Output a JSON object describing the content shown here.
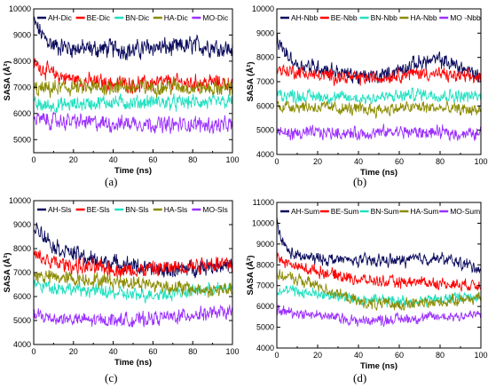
{
  "figure": {
    "captions": [
      "(a)",
      "(b)",
      "(c)",
      "(d)"
    ]
  },
  "chart_data": [
    {
      "type": "line",
      "panel": "a",
      "xlabel": "Time (ns)",
      "ylabel": "SASA (Å²)",
      "xlim": [
        0,
        100
      ],
      "ylim": [
        4500,
        10000
      ],
      "xticks": [
        0,
        20,
        40,
        60,
        80,
        100
      ],
      "yticks": [
        5000,
        6000,
        7000,
        8000,
        9000,
        10000
      ],
      "legend_position": "top",
      "series": [
        {
          "name": "AH-Dic",
          "color": "#0a0a5c",
          "x": [
            0,
            5,
            10,
            20,
            30,
            40,
            50,
            60,
            70,
            80,
            90,
            100
          ],
          "y": [
            9500,
            8900,
            8600,
            8500,
            8450,
            8500,
            8400,
            8550,
            8500,
            8600,
            8550,
            8450
          ],
          "noise": 270
        },
        {
          "name": "BE-Dic",
          "color": "#ff0000",
          "x": [
            0,
            10,
            20,
            30,
            40,
            50,
            60,
            70,
            80,
            90,
            100
          ],
          "y": [
            7900,
            7500,
            7300,
            7200,
            7150,
            7100,
            7150,
            7200,
            7150,
            7200,
            7150
          ],
          "noise": 230
        },
        {
          "name": "BN-Dic",
          "color": "#20e0c0",
          "x": [
            0,
            10,
            20,
            30,
            40,
            50,
            60,
            70,
            80,
            90,
            100
          ],
          "y": [
            6300,
            6300,
            6350,
            6400,
            6450,
            6400,
            6450,
            6400,
            6450,
            6400,
            6450
          ],
          "noise": 210
        },
        {
          "name": "HA-Dic",
          "color": "#8b8b00",
          "x": [
            0,
            10,
            20,
            30,
            40,
            50,
            60,
            70,
            80,
            90,
            100
          ],
          "y": [
            6900,
            6950,
            7000,
            6950,
            7050,
            7000,
            7000,
            7050,
            7000,
            6950,
            7000
          ],
          "noise": 240
        },
        {
          "name": "MO-Dic",
          "color": "#9b30ff",
          "x": [
            0,
            10,
            20,
            30,
            40,
            50,
            60,
            70,
            80,
            90,
            100
          ],
          "y": [
            5800,
            5700,
            5700,
            5650,
            5600,
            5650,
            5600,
            5550,
            5600,
            5550,
            5550
          ],
          "noise": 230
        }
      ]
    },
    {
      "type": "line",
      "panel": "b",
      "xlabel": "Time (ns)",
      "ylabel": "SASA (Å²)",
      "xlim": [
        0,
        100
      ],
      "ylim": [
        4000,
        10000
      ],
      "xticks": [
        0,
        20,
        40,
        60,
        80,
        100
      ],
      "yticks": [
        4000,
        5000,
        6000,
        7000,
        8000,
        9000,
        10000
      ],
      "legend_position": "top",
      "series": [
        {
          "name": "AH-Nbb",
          "color": "#0a0a5c",
          "x": [
            0,
            5,
            10,
            20,
            30,
            40,
            50,
            60,
            70,
            80,
            90,
            100
          ],
          "y": [
            8700,
            8100,
            7700,
            7600,
            7400,
            7200,
            7200,
            7500,
            7800,
            7900,
            7600,
            7200
          ],
          "noise": 240
        },
        {
          "name": "BE-Nbb",
          "color": "#ff0000",
          "x": [
            0,
            10,
            20,
            30,
            40,
            50,
            60,
            70,
            80,
            90,
            100
          ],
          "y": [
            7500,
            7400,
            7250,
            7200,
            7150,
            7150,
            7300,
            7350,
            7300,
            7200,
            7150
          ],
          "noise": 210
        },
        {
          "name": "BN-Nbb",
          "color": "#20e0c0",
          "x": [
            0,
            10,
            20,
            30,
            40,
            50,
            60,
            70,
            80,
            90,
            100
          ],
          "y": [
            6500,
            6400,
            6400,
            6350,
            6300,
            6350,
            6400,
            6500,
            6450,
            6400,
            6400
          ],
          "noise": 200
        },
        {
          "name": "HA-Nbb",
          "color": "#8b8b00",
          "x": [
            0,
            10,
            20,
            30,
            40,
            50,
            60,
            70,
            80,
            90,
            100
          ],
          "y": [
            6000,
            6000,
            5950,
            5900,
            5850,
            5850,
            5900,
            5950,
            5900,
            5850,
            5850
          ],
          "noise": 200
        },
        {
          "name": "MO -Nbb",
          "color": "#9b30ff",
          "x": [
            0,
            10,
            20,
            30,
            40,
            50,
            60,
            70,
            80,
            90,
            100
          ],
          "y": [
            4900,
            4850,
            4900,
            4900,
            4850,
            4900,
            4950,
            4900,
            4900,
            4850,
            4850
          ],
          "noise": 200
        }
      ]
    },
    {
      "type": "line",
      "panel": "c",
      "xlabel": "Time (ns)",
      "ylabel": "SASA (Å²)",
      "xlim": [
        0,
        100
      ],
      "ylim": [
        4000,
        10000
      ],
      "xticks": [
        0,
        20,
        40,
        60,
        80,
        100
      ],
      "yticks": [
        4000,
        5000,
        6000,
        7000,
        8000,
        9000,
        10000
      ],
      "legend_position": "top",
      "series": [
        {
          "name": "AH-Sls",
          "color": "#0a0a5c",
          "x": [
            0,
            5,
            10,
            20,
            30,
            40,
            50,
            60,
            70,
            80,
            90,
            100
          ],
          "y": [
            9000,
            8600,
            8100,
            7800,
            7500,
            7400,
            7300,
            7100,
            7100,
            7200,
            7300,
            7300
          ],
          "noise": 250
        },
        {
          "name": "BE-Sls",
          "color": "#ff0000",
          "x": [
            0,
            10,
            20,
            30,
            40,
            50,
            60,
            70,
            80,
            90,
            100
          ],
          "y": [
            7700,
            7400,
            7300,
            7200,
            7150,
            7100,
            7150,
            7200,
            7300,
            7400,
            7350
          ],
          "noise": 260
        },
        {
          "name": "BN-Sls",
          "color": "#20e0c0",
          "x": [
            0,
            10,
            20,
            30,
            40,
            50,
            60,
            70,
            80,
            90,
            100
          ],
          "y": [
            6500,
            6400,
            6300,
            6250,
            6150,
            6050,
            6100,
            6150,
            6250,
            6300,
            6350
          ],
          "noise": 210
        },
        {
          "name": "HA-Sls",
          "color": "#8b8b00",
          "x": [
            0,
            10,
            20,
            30,
            40,
            50,
            60,
            70,
            80,
            90,
            100
          ],
          "y": [
            6900,
            6800,
            6750,
            6700,
            6650,
            6600,
            6500,
            6400,
            6300,
            6250,
            6300
          ],
          "noise": 230
        },
        {
          "name": "MO-Sls",
          "color": "#9b30ff",
          "x": [
            0,
            10,
            20,
            30,
            40,
            50,
            60,
            70,
            80,
            90,
            100
          ],
          "y": [
            5200,
            5100,
            5050,
            5000,
            5050,
            5000,
            5100,
            5150,
            5250,
            5300,
            5350
          ],
          "noise": 220
        }
      ]
    },
    {
      "type": "line",
      "panel": "d",
      "xlabel": "Time (ns)",
      "ylabel": "SASA (Å²)",
      "xlim": [
        0,
        100
      ],
      "ylim": [
        4000,
        11000
      ],
      "xticks": [
        0,
        20,
        40,
        60,
        80,
        100
      ],
      "yticks": [
        4000,
        5000,
        6000,
        7000,
        8000,
        9000,
        10000,
        11000
      ],
      "legend_position": "top",
      "series": [
        {
          "name": "AH-Sum",
          "color": "#0a0a5c",
          "x": [
            0,
            2,
            5,
            10,
            20,
            30,
            40,
            50,
            60,
            70,
            80,
            90,
            100
          ],
          "y": [
            10100,
            9300,
            8700,
            8400,
            8300,
            8250,
            8200,
            8200,
            8200,
            8300,
            8300,
            8100,
            7800
          ],
          "noise": 220
        },
        {
          "name": "BE-Sum",
          "color": "#ff0000",
          "x": [
            0,
            10,
            20,
            30,
            40,
            50,
            60,
            70,
            80,
            90,
            100
          ],
          "y": [
            8300,
            7900,
            7700,
            7500,
            7300,
            7200,
            7150,
            7200,
            7100,
            7050,
            7050
          ],
          "noise": 210
        },
        {
          "name": "BN-Sum",
          "color": "#20e0c0",
          "x": [
            0,
            10,
            20,
            30,
            40,
            50,
            60,
            70,
            80,
            90,
            100
          ],
          "y": [
            6800,
            6700,
            6600,
            6500,
            6350,
            6300,
            6250,
            6250,
            6350,
            6450,
            6500
          ],
          "noise": 210
        },
        {
          "name": "HA-Sum",
          "color": "#8b8b00",
          "x": [
            0,
            10,
            20,
            30,
            40,
            50,
            60,
            70,
            80,
            90,
            100
          ],
          "y": [
            7500,
            7300,
            7000,
            6600,
            6200,
            6100,
            6100,
            6150,
            6200,
            6350,
            6400
          ],
          "noise": 210
        },
        {
          "name": "MO-Sum",
          "color": "#9b30ff",
          "x": [
            0,
            10,
            20,
            30,
            40,
            50,
            60,
            70,
            80,
            90,
            100
          ],
          "y": [
            5800,
            5700,
            5600,
            5450,
            5300,
            5350,
            5400,
            5450,
            5500,
            5550,
            5600
          ],
          "noise": 200
        }
      ]
    }
  ]
}
